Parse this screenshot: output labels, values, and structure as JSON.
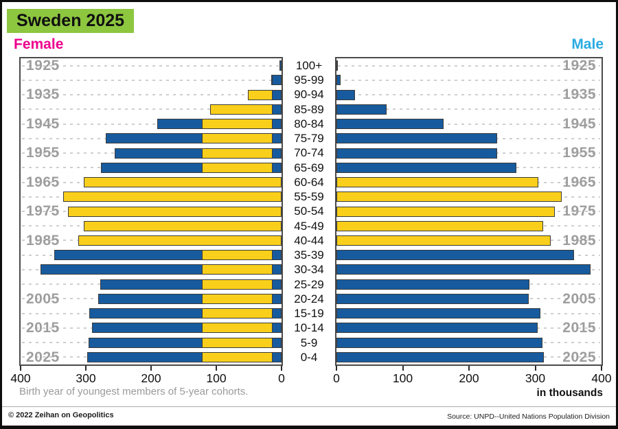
{
  "title": "Sweden 2025",
  "left_header": "Female",
  "right_header": "Male",
  "axis_note": "Birth year of youngest members of 5-year cohorts.",
  "unit_label": "in thousands",
  "footer": {
    "copyright": "© 2022 Zeihan on Geopolitics",
    "source": "Source: UNPD--United Nations Population Division"
  },
  "colors": {
    "bar_blue": "#175B9E",
    "bar_yellow": "#F9CF1B",
    "title_bg": "#8DC63F",
    "female_label": "#EC008C",
    "male_label": "#29ABE2",
    "year_label": "#9E9E9E"
  },
  "chart_data": {
    "type": "bar",
    "title": "Sweden 2025",
    "subtitle_note": "Population pyramid styled as the Swedish flag (yellow cross over blue bars)",
    "unit": "thousands",
    "categories": [
      "100+",
      "95-99",
      "90-94",
      "85-89",
      "80-84",
      "75-79",
      "70-74",
      "65-69",
      "60-64",
      "55-59",
      "50-54",
      "45-49",
      "40-44",
      "35-39",
      "30-34",
      "25-29",
      "20-24",
      "15-19",
      "10-14",
      "5-9",
      "0-4"
    ],
    "series": [
      {
        "name": "Female",
        "values": [
          3,
          16,
          52,
          109,
          191,
          270,
          256,
          277,
          303,
          335,
          327,
          303,
          312,
          348,
          370,
          278,
          281,
          295,
          291,
          296,
          298
        ]
      },
      {
        "name": "Male",
        "values": [
          1,
          6,
          28,
          76,
          162,
          243,
          243,
          272,
          305,
          340,
          330,
          312,
          323,
          359,
          383,
          291,
          290,
          308,
          304,
          311,
          313
        ]
      }
    ],
    "x_ticks": [
      0,
      100,
      200,
      300,
      400
    ],
    "xlim_female": [
      400,
      0
    ],
    "xlim_male": [
      0,
      400
    ],
    "grid": "dashed horizontal per cohort row",
    "year_labels": [
      {
        "age": "100+",
        "year": "1925"
      },
      {
        "age": "90-94",
        "year": "1935"
      },
      {
        "age": "80-84",
        "year": "1945"
      },
      {
        "age": "70-74",
        "year": "1955"
      },
      {
        "age": "60-64",
        "year": "1965"
      },
      {
        "age": "50-54",
        "year": "1975"
      },
      {
        "age": "40-44",
        "year": "1985"
      },
      {
        "age": "20-24",
        "year": "2005"
      },
      {
        "age": "10-14",
        "year": "2015"
      },
      {
        "age": "0-4",
        "year": "2025"
      }
    ],
    "flag_highlight": {
      "full_yellow_ages": [
        "60-64",
        "55-59",
        "50-54",
        "45-49",
        "40-44"
      ],
      "female_band_thousands": {
        "from": 14,
        "to": 122
      }
    }
  }
}
